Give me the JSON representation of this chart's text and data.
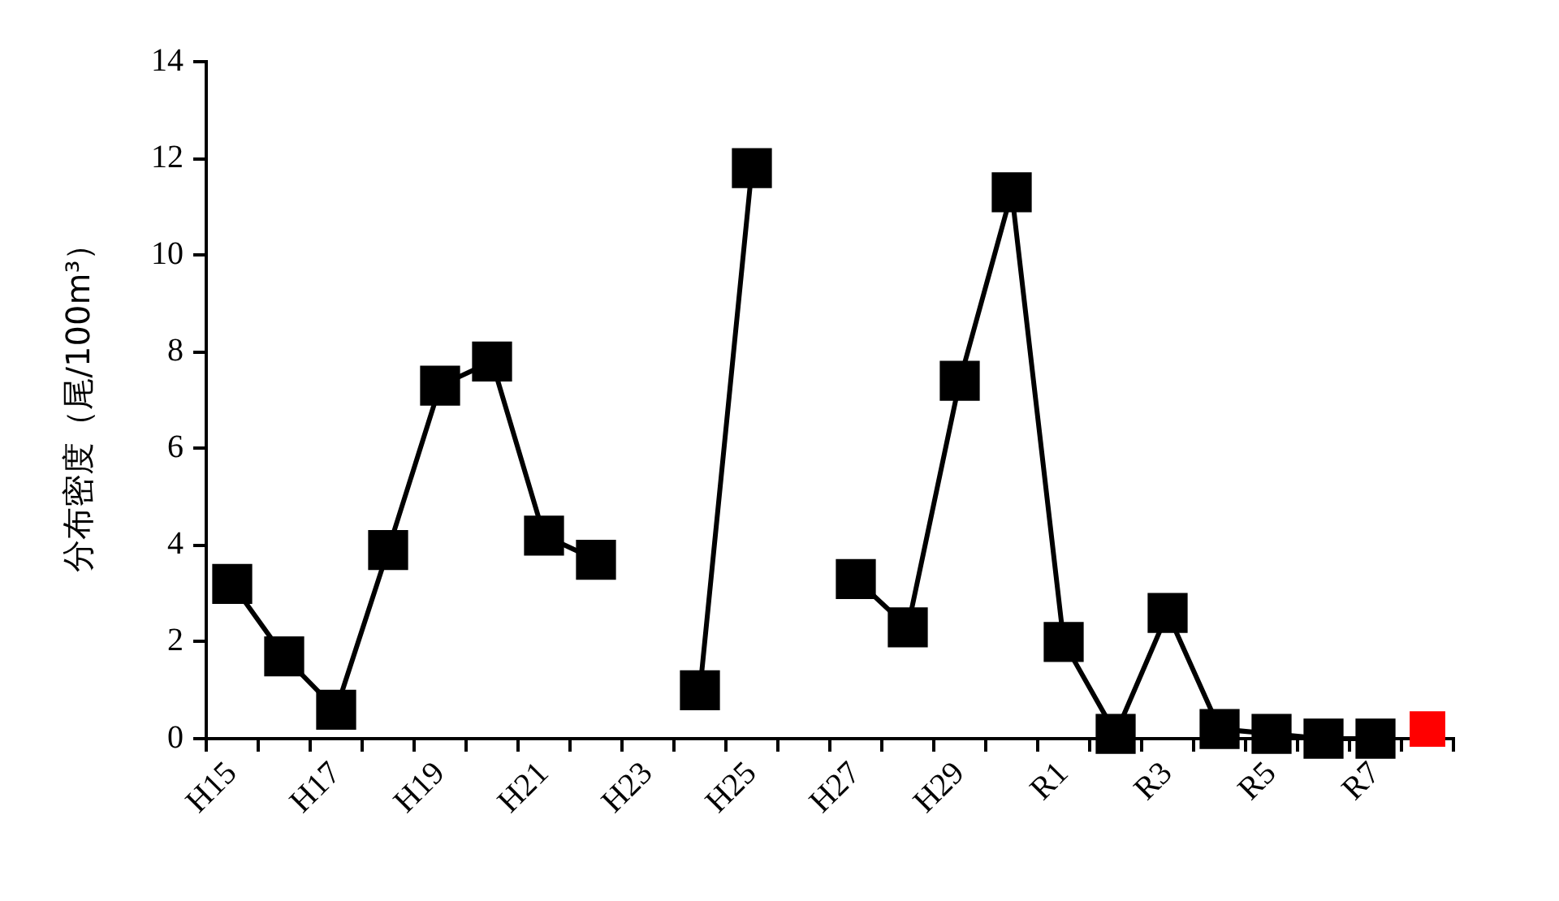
{
  "chart_data": {
    "type": "line",
    "ylabel": "分布密度（尾/100m³）",
    "categories": [
      "H15",
      null,
      "H17",
      null,
      "H19",
      null,
      "H21",
      null,
      "H23",
      null,
      "H25",
      null,
      "H27",
      null,
      "H29",
      null,
      "R1",
      null,
      "R3",
      null,
      "R5",
      null,
      "R7",
      null
    ],
    "series": [
      {
        "type": "line",
        "color": "#000000",
        "values": [
          3.2,
          1.7,
          0.6,
          3.9,
          7.3,
          7.8,
          4.2,
          3.7,
          null,
          1.0,
          11.8,
          null,
          3.3,
          2.3,
          7.4,
          11.3,
          2.0,
          0.1,
          2.6,
          0.2,
          0.1,
          0.0,
          0.0,
          null
        ]
      },
      {
        "type": "scatter",
        "color": "#ff0000",
        "values": [
          null,
          null,
          null,
          null,
          null,
          null,
          null,
          null,
          null,
          null,
          null,
          null,
          null,
          null,
          null,
          null,
          null,
          null,
          null,
          null,
          null,
          null,
          null,
          0.2
        ]
      }
    ],
    "ylim": [
      0,
      14
    ],
    "yticks": [
      0,
      2,
      4,
      6,
      8,
      10,
      12,
      14
    ],
    "grid": false,
    "legend": false,
    "marker": "square",
    "line_style": "solid"
  }
}
